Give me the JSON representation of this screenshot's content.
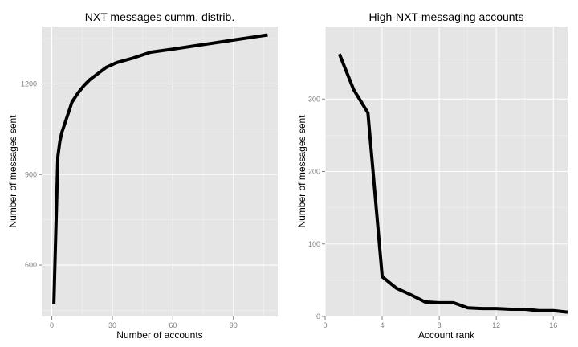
{
  "chart_data": [
    {
      "type": "line",
      "title": "NXT messages cumm. distrib.",
      "xlabel": "Number of accounts",
      "ylabel": "Number of messages sent",
      "xlim": [
        -5,
        112
      ],
      "ylim": [
        430,
        1390
      ],
      "x_ticks": [
        0,
        30,
        60,
        90
      ],
      "x_tick_labels": [
        "0",
        "30",
        "60",
        "90"
      ],
      "y_ticks": [
        600,
        900,
        1200
      ],
      "y_tick_labels": [
        "600",
        "900",
        "1200"
      ],
      "grid": true,
      "series": [
        {
          "x": [
            1,
            3,
            4,
            5,
            7,
            10,
            13,
            16,
            19,
            23,
            27,
            32,
            40,
            49,
            60,
            70,
            80,
            90,
            100,
            107
          ],
          "y": [
            470,
            960,
            1010,
            1040,
            1080,
            1140,
            1170,
            1195,
            1215,
            1235,
            1255,
            1270,
            1285,
            1305,
            1315,
            1325,
            1335,
            1345,
            1355,
            1362
          ]
        }
      ]
    },
    {
      "type": "line",
      "title": "High-NXT-messaging accounts",
      "xlabel": "Account rank",
      "ylabel": "Number of messages sent",
      "xlim": [
        0,
        17
      ],
      "ylim": [
        0,
        400
      ],
      "x_ticks": [
        0,
        4,
        8,
        12,
        16
      ],
      "x_tick_labels": [
        "0",
        "4",
        "8",
        "12",
        "16"
      ],
      "y_ticks": [
        0,
        100,
        200,
        300
      ],
      "y_tick_labels": [
        "0",
        "100",
        "200",
        "300"
      ],
      "grid": true,
      "series": [
        {
          "x": [
            1,
            2,
            3,
            4,
            5,
            6,
            7,
            8,
            9,
            10,
            11,
            12,
            13,
            14,
            15,
            16,
            17
          ],
          "y": [
            362,
            313,
            281,
            55,
            39,
            30,
            20,
            19,
            19,
            12,
            11,
            11,
            10,
            10,
            8,
            8,
            6
          ]
        }
      ]
    }
  ]
}
